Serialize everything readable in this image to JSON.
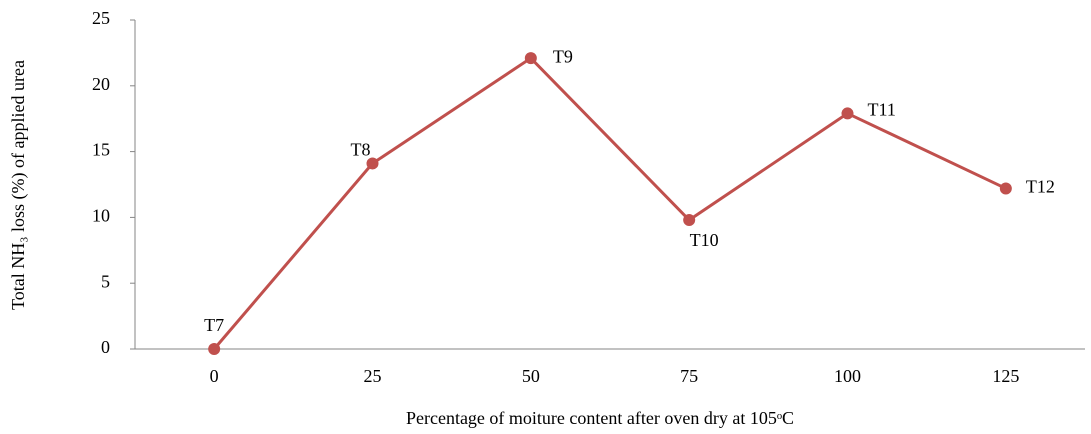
{
  "chart_data": {
    "type": "line",
    "x_label": "Percentage of moiture content after oven dry at 105ᵒC",
    "y_label": "Total NH₃ loss (%) of applied urea",
    "categories": [
      "0",
      "25",
      "50",
      "75",
      "100",
      "125"
    ],
    "series": [
      {
        "name": null,
        "color": "#c0504d",
        "values": [
          0,
          14.1,
          22.1,
          9.8,
          17.9,
          12.2
        ]
      }
    ],
    "point_labels": [
      "T7",
      "T8",
      "T9",
      "T10",
      "T11",
      "T12"
    ],
    "ylim": [
      0,
      25
    ],
    "yticks": [
      0,
      5,
      10,
      15,
      20,
      25
    ],
    "grid": false
  }
}
